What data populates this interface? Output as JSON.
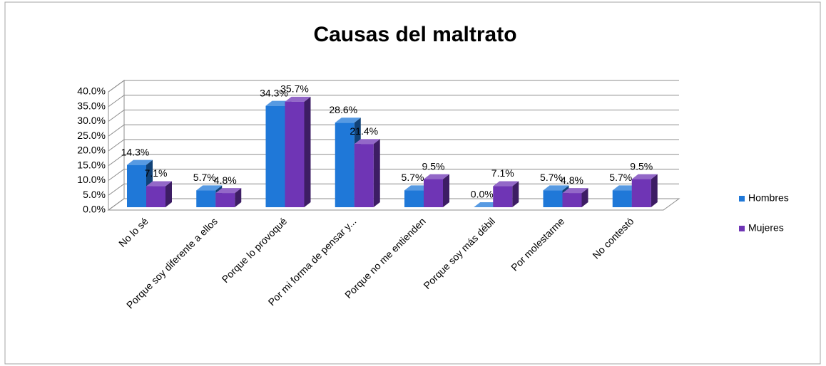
{
  "chart_data": {
    "type": "bar3d",
    "title": "Causas del maltrato",
    "categories": [
      "No lo sé",
      "Porque soy diferente a ellos",
      "Porque lo provoqué",
      "Por mi forma de pensar y...",
      "Porque no me entienden",
      "Porque soy más débil",
      "Por molestarme",
      "No contestó"
    ],
    "series": [
      {
        "name": "Hombres",
        "color": "#1f78d8",
        "values": [
          14.3,
          5.7,
          34.3,
          28.6,
          5.7,
          0.0,
          5.7,
          5.7
        ],
        "value_labels": [
          "14.3%",
          "5.7%",
          "34.3%",
          "28.6%",
          "5.7%",
          "0.0%",
          "5.7%",
          "5.7%"
        ]
      },
      {
        "name": "Mujeres",
        "color": "#6f35b5",
        "values": [
          7.1,
          4.8,
          35.7,
          21.4,
          9.5,
          7.1,
          4.8,
          9.5
        ],
        "value_labels": [
          "7.1%",
          "4.8%",
          "35.7%",
          "21.4%",
          "9.5%",
          "7.1%",
          "4.8%",
          "9.5%"
        ]
      }
    ],
    "ylim": [
      0,
      40
    ],
    "yticks": [
      {
        "value": 0,
        "label": "0.0%"
      },
      {
        "value": 5,
        "label": "5.0%"
      },
      {
        "value": 10,
        "label": "10.0%"
      },
      {
        "value": 15,
        "label": "15.0%"
      },
      {
        "value": 20,
        "label": "20.0%"
      },
      {
        "value": 25,
        "label": "25.0%"
      },
      {
        "value": 30,
        "label": "30.0%"
      },
      {
        "value": 35,
        "label": "35.0%"
      },
      {
        "value": 40,
        "label": "40.0%"
      }
    ],
    "grid": true,
    "legend": "right"
  }
}
